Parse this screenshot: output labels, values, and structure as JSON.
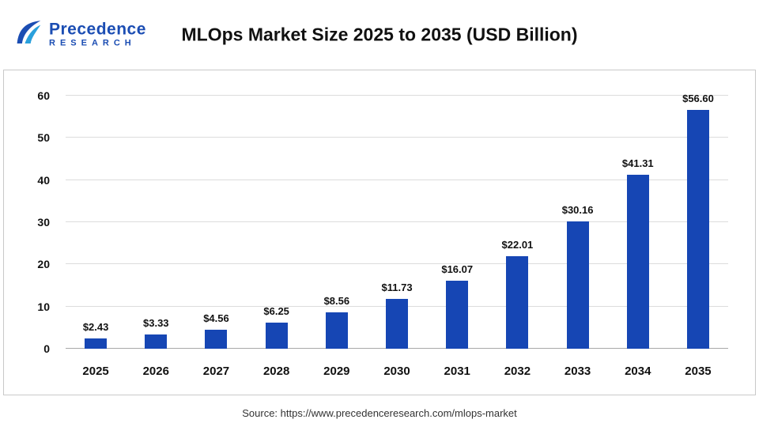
{
  "header": {
    "logo": {
      "name": "Precedence",
      "sub": "RESEARCH"
    }
  },
  "chart_data": {
    "type": "bar",
    "title": "MLOps Market Size 2025 to 2035 (USD Billion)",
    "categories": [
      "2025",
      "2026",
      "2027",
      "2028",
      "2029",
      "2030",
      "2031",
      "2032",
      "2033",
      "2034",
      "2035"
    ],
    "values": [
      2.43,
      3.33,
      4.56,
      6.25,
      8.56,
      11.73,
      16.07,
      22.01,
      30.16,
      41.31,
      56.6
    ],
    "value_labels": [
      "$2.43",
      "$3.33",
      "$4.56",
      "$6.25",
      "$8.56",
      "$11.73",
      "$16.07",
      "$22.01",
      "$30.16",
      "$41.31",
      "$56.60"
    ],
    "xlabel": "",
    "ylabel": "",
    "ylim": [
      0,
      60
    ],
    "yticks": [
      0,
      10,
      20,
      30,
      40,
      50,
      60
    ],
    "bar_color": "#1646b4",
    "grid": true,
    "legend": "none"
  },
  "footer": {
    "source": "Source: https://www.precedenceresearch.com/mlops-market"
  }
}
